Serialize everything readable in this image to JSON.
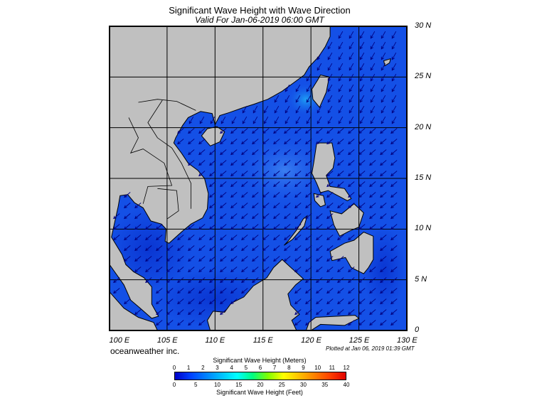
{
  "header": {
    "title": "Significant Wave Height with Wave Direction",
    "subtitle": "Valid For Jan-06-2019 06:00 GMT"
  },
  "map": {
    "lon_range": [
      99,
      130
    ],
    "lat_range": [
      0,
      30
    ],
    "lon_labels": [
      {
        "lon": 100,
        "text": "100 E"
      },
      {
        "lon": 105,
        "text": "105 E"
      },
      {
        "lon": 110,
        "text": "110 E"
      },
      {
        "lon": 115,
        "text": "115 E"
      },
      {
        "lon": 120,
        "text": "120 E"
      },
      {
        "lon": 125,
        "text": "125 E"
      },
      {
        "lon": 130,
        "text": "130 E"
      }
    ],
    "lat_labels": [
      {
        "lat": 30,
        "text": "30 N"
      },
      {
        "lat": 25,
        "text": "25 N"
      },
      {
        "lat": 20,
        "text": "20 N"
      },
      {
        "lat": 15,
        "text": "15 N"
      },
      {
        "lat": 10,
        "text": "10 N"
      },
      {
        "lat": 5,
        "text": "5 N"
      },
      {
        "lat": 0,
        "text": "0"
      }
    ],
    "grid_lons": [
      105,
      110,
      115,
      120,
      125
    ],
    "grid_lats": [
      5,
      10,
      15,
      20,
      25
    ],
    "land_color": "#c0c0c0",
    "ocean_color": "#1450e6",
    "wave_direction": "from northeast (arrows pointing southwest)"
  },
  "footer": {
    "credit": "oceanweather inc.",
    "plotted": "Plotted at Jan 06, 2019 01:39 GMT"
  },
  "colorbar": {
    "meters_title": "Significant Wave Height (Meters)",
    "feet_title": "Significant Wave Height (Feet)",
    "meters_ticks": [
      "0",
      "1",
      "2",
      "3",
      "4",
      "5",
      "6",
      "7",
      "8",
      "9",
      "10",
      "11",
      "12"
    ],
    "feet_ticks": [
      "0",
      "5",
      "10",
      "15",
      "20",
      "25",
      "30",
      "35",
      "40"
    ],
    "colors": [
      "#0000c8",
      "#0040ff",
      "#0080ff",
      "#00c0ff",
      "#00ffff",
      "#00ff80",
      "#80ff00",
      "#ffff00",
      "#ffc000",
      "#ff8000",
      "#ff4000",
      "#e00000"
    ]
  }
}
